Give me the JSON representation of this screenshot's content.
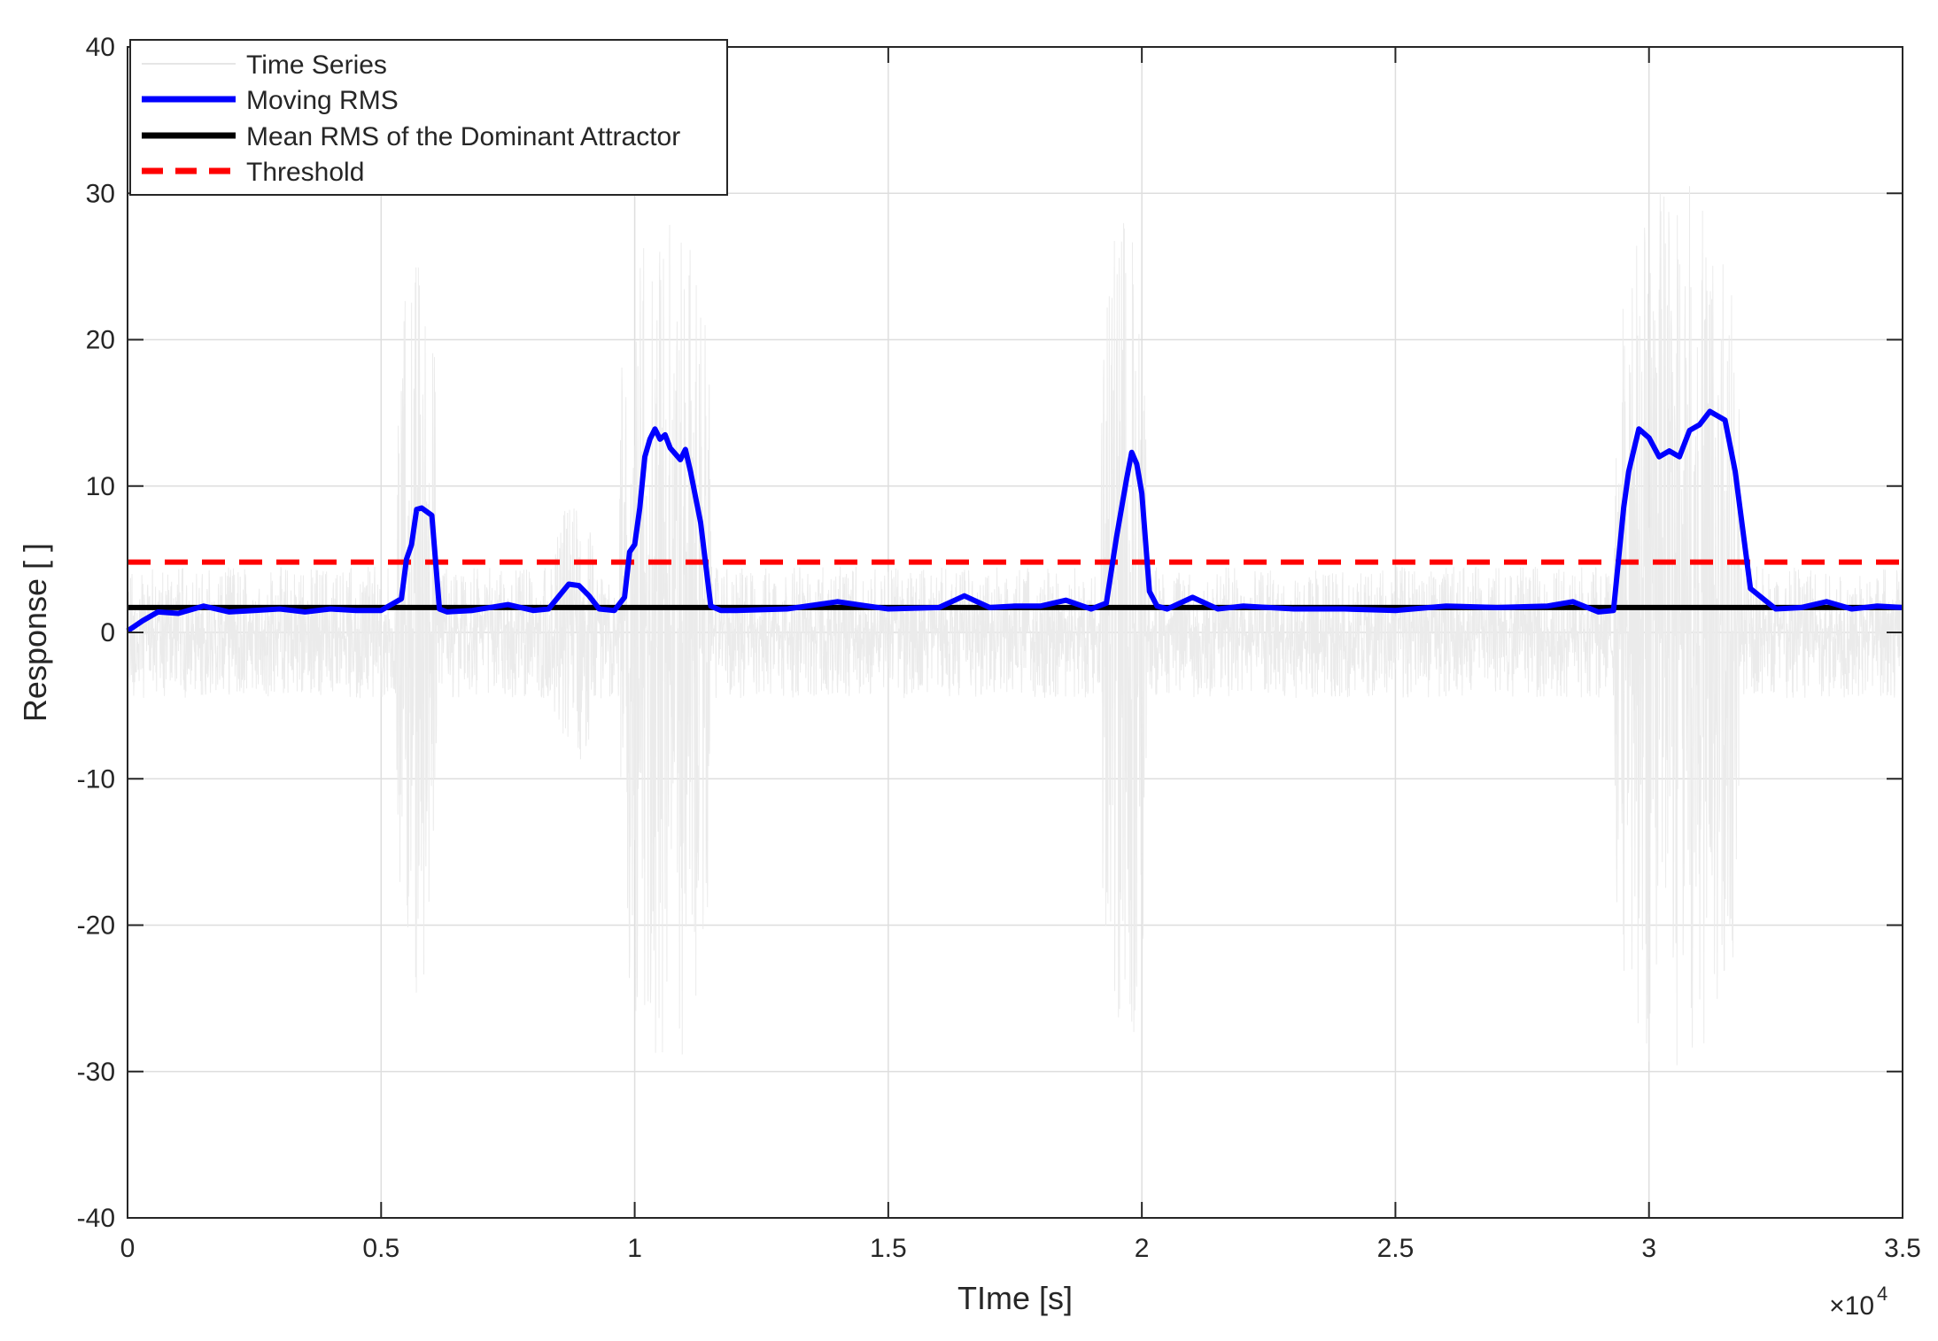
{
  "chart_data": {
    "type": "line",
    "xlabel": "TIme [s]",
    "ylabel": "Response [ ]",
    "x_exponent_label": "×10",
    "x_exponent_power": "4",
    "xlim": [
      0,
      35000
    ],
    "ylim": [
      -40,
      40
    ],
    "grid": true,
    "legend_position": "top-left",
    "x_ticks": [
      0,
      5000,
      10000,
      15000,
      20000,
      25000,
      30000,
      35000
    ],
    "x_tick_labels": [
      "0",
      "0.5",
      "1",
      "1.5",
      "2",
      "2.5",
      "3",
      "3.5"
    ],
    "y_ticks": [
      40,
      30,
      20,
      10,
      0,
      -10,
      -20,
      -30,
      -40
    ],
    "y_tick_labels": [
      "40",
      "30",
      "20",
      "10",
      "0",
      "-10",
      "-20",
      "-30",
      "-40"
    ],
    "series": [
      {
        "name": "Time Series",
        "color": "#ebebeb",
        "style": "thin-solid",
        "baseline_amplitude": 4.5,
        "bursts": [
          {
            "start": 5300,
            "end": 6100,
            "amplitude": 26
          },
          {
            "start": 8400,
            "end": 9200,
            "amplitude": 9
          },
          {
            "start": 9700,
            "end": 11500,
            "amplitude": 30
          },
          {
            "start": 19200,
            "end": 20100,
            "amplitude": 29
          },
          {
            "start": 29300,
            "end": 31800,
            "amplitude": 31
          }
        ]
      },
      {
        "name": "Moving RMS",
        "color": "#0000ff",
        "style": "thick-solid",
        "x": [
          0,
          300,
          600,
          1000,
          1500,
          2000,
          2500,
          3000,
          3500,
          4000,
          4500,
          5000,
          5400,
          5500,
          5600,
          5700,
          5800,
          6000,
          6150,
          6300,
          6800,
          7500,
          8000,
          8300,
          8700,
          8900,
          9100,
          9300,
          9600,
          9800,
          9900,
          10000,
          10100,
          10200,
          10300,
          10400,
          10500,
          10600,
          10700,
          10800,
          10900,
          11000,
          11100,
          11300,
          11500,
          11700,
          12000,
          13000,
          14000,
          15000,
          16000,
          16500,
          17000,
          17500,
          18000,
          18500,
          19000,
          19300,
          19500,
          19700,
          19800,
          19900,
          20000,
          20150,
          20300,
          20500,
          21000,
          21500,
          22000,
          23000,
          24000,
          25000,
          26000,
          27000,
          28000,
          28500,
          29000,
          29300,
          29500,
          29600,
          29800,
          30000,
          30200,
          30400,
          30600,
          30800,
          31000,
          31200,
          31500,
          31700,
          32000,
          32500,
          33000,
          33500,
          34000,
          34500,
          35000
        ],
        "y": [
          0.1,
          0.8,
          1.4,
          1.3,
          1.8,
          1.4,
          1.5,
          1.6,
          1.4,
          1.6,
          1.5,
          1.5,
          2.3,
          5.0,
          6.0,
          8.4,
          8.5,
          8.0,
          1.6,
          1.4,
          1.5,
          1.9,
          1.5,
          1.6,
          3.3,
          3.2,
          2.5,
          1.6,
          1.5,
          2.4,
          5.5,
          6.0,
          8.5,
          12.0,
          13.2,
          13.9,
          13.2,
          13.5,
          12.6,
          12.2,
          11.8,
          12.5,
          11.0,
          7.5,
          1.8,
          1.5,
          1.5,
          1.6,
          2.1,
          1.6,
          1.7,
          2.5,
          1.7,
          1.8,
          1.8,
          2.2,
          1.6,
          2.0,
          6.5,
          10.5,
          12.3,
          11.5,
          9.5,
          2.8,
          1.8,
          1.6,
          2.4,
          1.6,
          1.8,
          1.6,
          1.6,
          1.5,
          1.8,
          1.7,
          1.8,
          2.1,
          1.4,
          1.5,
          8.5,
          11.0,
          13.9,
          13.3,
          12.0,
          12.4,
          12.0,
          13.8,
          14.2,
          15.1,
          14.5,
          11.0,
          3.0,
          1.6,
          1.7,
          2.1,
          1.6,
          1.8,
          1.7
        ]
      },
      {
        "name": "Mean RMS of the Dominant Attractor",
        "color": "#000000",
        "style": "thick-solid",
        "x": [
          0,
          35000
        ],
        "y": [
          1.7,
          1.7
        ]
      },
      {
        "name": "Threshold",
        "color": "#ff0000",
        "style": "thick-dashed",
        "x": [
          0,
          35000
        ],
        "y": [
          4.8,
          4.8
        ]
      }
    ]
  }
}
